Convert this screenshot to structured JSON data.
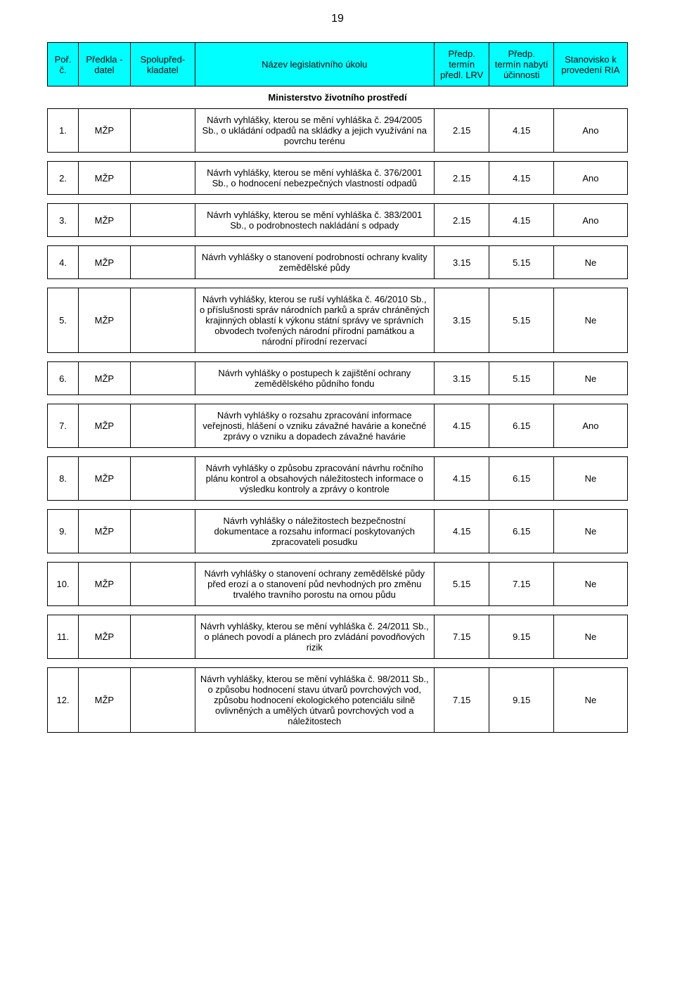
{
  "page_number": "19",
  "header_bg": "#00ffff",
  "columns": {
    "num": "Poř. č.",
    "predkladatel": "Předkla - datel",
    "spolu": "Spolupřed- kladatel",
    "title": "Název legislativního úkolu",
    "lrv": "Předp. termín předl. LRV",
    "eff": "Předp. termín nabytí účinnosti",
    "ria": "Stanovisko k provedení RIA"
  },
  "section_title": "Ministerstvo životního prostředí",
  "rows": [
    {
      "num": "1.",
      "pred": "MŽP",
      "spol": "",
      "title": "Návrh vyhlášky, kterou se mění vyhláška č. 294/2005 Sb., o ukládání odpadů na skládky a jejich využívání na povrchu terénu",
      "lrv": "2.15",
      "eff": "4.15",
      "ria": "Ano"
    },
    {
      "num": "2.",
      "pred": "MŽP",
      "spol": "",
      "title": "Návrh vyhlášky, kterou se mění vyhláška č. 376/2001 Sb., o hodnocení nebezpečných vlastností odpadů",
      "lrv": "2.15",
      "eff": "4.15",
      "ria": "Ano"
    },
    {
      "num": "3.",
      "pred": "MŽP",
      "spol": "",
      "title": "Návrh vyhlášky, kterou se mění vyhláška č. 383/2001 Sb., o podrobnostech nakládání s odpady",
      "lrv": "2.15",
      "eff": "4.15",
      "ria": "Ano"
    },
    {
      "num": "4.",
      "pred": "MŽP",
      "spol": "",
      "title": "Návrh vyhlášky o stanovení podrobností ochrany kvality zemědělské půdy",
      "lrv": "3.15",
      "eff": "5.15",
      "ria": "Ne"
    },
    {
      "num": "5.",
      "pred": "MŽP",
      "spol": "",
      "title": "Návrh vyhlášky, kterou se ruší vyhláška č. 46/2010 Sb., o příslušnosti správ národních parků a správ chráněných krajinných oblastí k výkonu státní správy ve správních obvodech tvořených národní přírodní památkou a národní přírodní rezervací",
      "lrv": "3.15",
      "eff": "5.15",
      "ria": "Ne"
    },
    {
      "num": "6.",
      "pred": "MŽP",
      "spol": "",
      "title": "Návrh vyhlášky o postupech k zajištění ochrany zemědělského půdního fondu",
      "lrv": "3.15",
      "eff": "5.15",
      "ria": "Ne"
    },
    {
      "num": "7.",
      "pred": "MŽP",
      "spol": "",
      "title": "Návrh vyhlášky o rozsahu zpracování informace veřejnosti, hlášení o vzniku závažné havárie a konečné zprávy o vzniku a dopadech závažné havárie",
      "lrv": "4.15",
      "eff": "6.15",
      "ria": "Ano"
    },
    {
      "num": "8.",
      "pred": "MŽP",
      "spol": "",
      "title": "Návrh vyhlášky o způsobu zpracování návrhu ročního plánu kontrol a obsahových náležitostech informace o výsledku kontroly a zprávy o kontrole",
      "lrv": "4.15",
      "eff": "6.15",
      "ria": "Ne"
    },
    {
      "num": "9.",
      "pred": "MŽP",
      "spol": "",
      "title": "Návrh vyhlášky o náležitostech bezpečnostní dokumentace a rozsahu informací poskytovaných zpracovateli posudku",
      "lrv": "4.15",
      "eff": "6.15",
      "ria": "Ne"
    },
    {
      "num": "10.",
      "pred": "MŽP",
      "spol": "",
      "title": "Návrh vyhlášky o stanovení ochrany zemědělské půdy před erozí a o stanovení půd nevhodných pro změnu trvalého travního porostu na ornou půdu",
      "lrv": "5.15",
      "eff": "7.15",
      "ria": "Ne"
    },
    {
      "num": "11.",
      "pred": "MŽP",
      "spol": "",
      "title": "Návrh vyhlášky, kterou se mění vyhláška č. 24/2011 Sb., o plánech povodí a plánech pro zvládání povodňových rizik",
      "lrv": "7.15",
      "eff": "9.15",
      "ria": "Ne"
    },
    {
      "num": "12.",
      "pred": "MŽP",
      "spol": "",
      "title": "Návrh vyhlášky, kterou se mění vyhláška č. 98/2011 Sb., o způsobu hodnocení stavu útvarů povrchových vod, způsobu hodnocení ekologického potenciálu silně ovlivněných a umělých útvarů povrchových vod a náležitostech",
      "lrv": "7.15",
      "eff": "9.15",
      "ria": "Ne"
    }
  ]
}
